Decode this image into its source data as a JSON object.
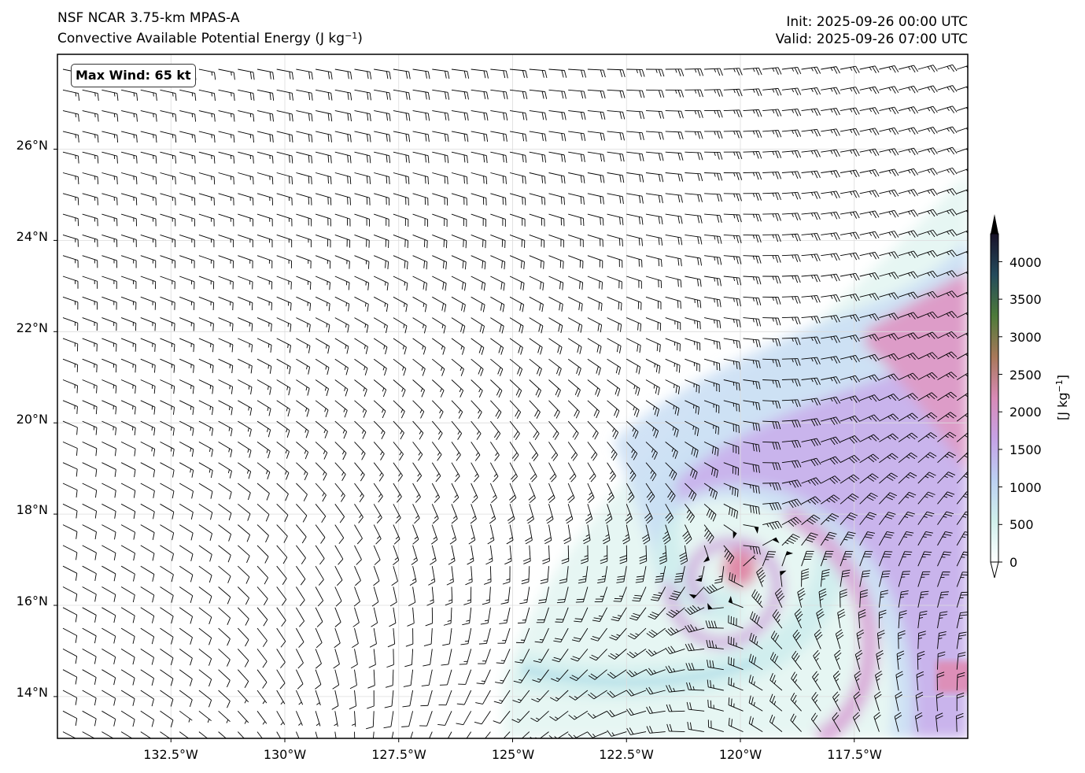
{
  "header": {
    "model": "NSF NCAR 3.75-km MPAS-A",
    "field": "Convective Available Potential Energy (J kg",
    "field_exp": "−1",
    "field_close": ")",
    "init": "Init: 2025-09-26 00:00 UTC",
    "valid": "Valid: 2025-09-26 07:00 UTC"
  },
  "annotation": {
    "max_wind": "Max Wind: 65 kt"
  },
  "axes": {
    "lon_ticks": [
      "132.5°W",
      "130°W",
      "127.5°W",
      "125°W",
      "122.5°W",
      "120°W",
      "117.5°W"
    ],
    "lat_ticks": [
      "26°N",
      "24°N",
      "22°N",
      "20°N",
      "18°N",
      "16°N",
      "14°N"
    ]
  },
  "colorbar": {
    "label": "[J kg",
    "label_exp": "−1",
    "label_close": "]",
    "ticks": [
      "0",
      "500",
      "1000",
      "1500",
      "2000",
      "2500",
      "3000",
      "3500",
      "4000"
    ],
    "colors": [
      "#ffffff",
      "#d0f0ec",
      "#bcd0f2",
      "#c5a2e6",
      "#d88ab6",
      "#a8785a",
      "#4d7a3a",
      "#244a5c",
      "#181228"
    ]
  },
  "chart_data": {
    "type": "heatmap",
    "title": "Convective Available Potential Energy (J kg−1)",
    "units": "J kg−1",
    "lon_range": [
      -135,
      -115
    ],
    "lat_range": [
      13,
      28
    ],
    "vmin": 0,
    "vmax": 4000,
    "storm_center": {
      "lon": -120,
      "lat": 16.7,
      "cape_approx": 1700
    },
    "high_cape_region": {
      "lon": -116.3,
      "lat": 22.3,
      "cape_approx": 1800
    },
    "max_wind_kt": 65
  }
}
